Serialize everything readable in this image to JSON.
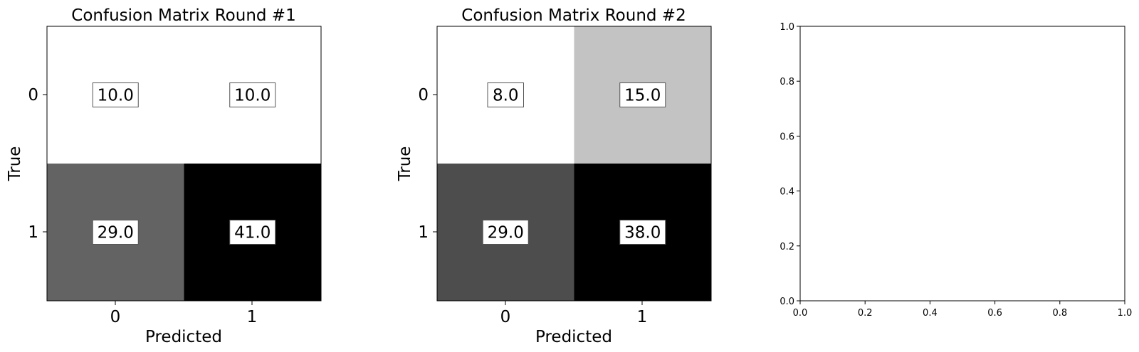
{
  "chart_data": [
    {
      "type": "heatmap",
      "title": "Confusion Matrix Round #1",
      "xlabel": "Predicted",
      "ylabel": "True",
      "x_categories": [
        "0",
        "1"
      ],
      "y_categories": [
        "0",
        "1"
      ],
      "values": [
        [
          10.0,
          10.0
        ],
        [
          29.0,
          41.0
        ]
      ],
      "value_labels": [
        [
          "10.0",
          "10.0"
        ],
        [
          "29.0",
          "41.0"
        ]
      ],
      "colormap": "Greys",
      "color_range": [
        10.0,
        41.0
      ],
      "grid": false
    },
    {
      "type": "heatmap",
      "title": "Confusion Matrix Round #2",
      "xlabel": "Predicted",
      "ylabel": "True",
      "x_categories": [
        "0",
        "1"
      ],
      "y_categories": [
        "0",
        "1"
      ],
      "values": [
        [
          8.0,
          15.0
        ],
        [
          29.0,
          38.0
        ]
      ],
      "value_labels": [
        [
          "8.0",
          "15.0"
        ],
        [
          "29.0",
          "38.0"
        ]
      ],
      "colormap": "Greys",
      "color_range": [
        8.0,
        38.0
      ],
      "grid": false
    },
    {
      "type": "scatter",
      "title": "",
      "xlabel": "",
      "ylabel": "",
      "xlim": [
        0.0,
        1.0
      ],
      "ylim": [
        0.0,
        1.0
      ],
      "xticks": [
        "0.0",
        "0.2",
        "0.4",
        "0.6",
        "0.8",
        "1.0"
      ],
      "yticks": [
        "0.0",
        "0.2",
        "0.4",
        "0.6",
        "0.8",
        "1.0"
      ],
      "series": [],
      "grid": false
    }
  ]
}
